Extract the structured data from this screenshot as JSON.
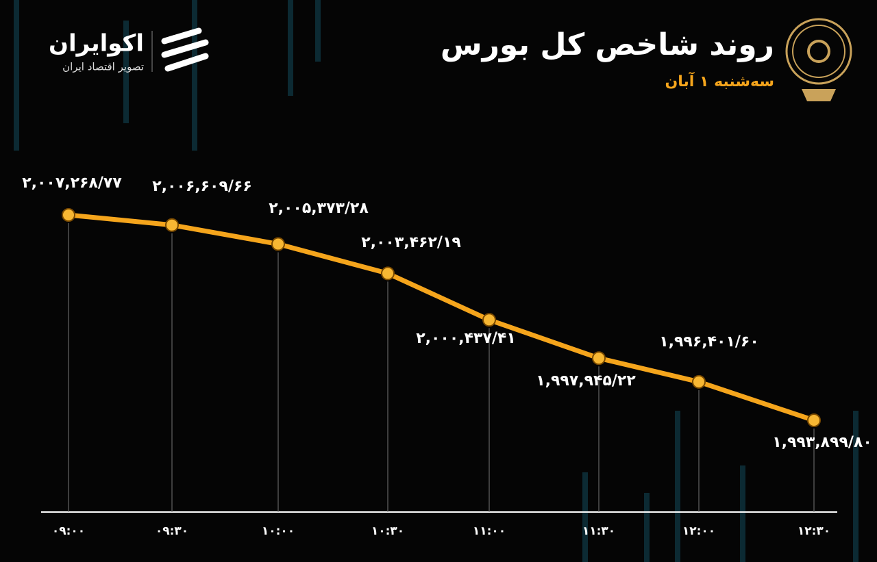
{
  "brand": {
    "name": "اکوایران",
    "tagline": "تصویر اقتصاد ایران"
  },
  "chart_data": {
    "type": "line",
    "title": "روند شاخص کل بورس",
    "subtitle": "سه‌شنبه ۱ آبان",
    "categories": [
      "۰۹:۰۰",
      "۰۹:۳۰",
      "۱۰:۰۰",
      "۱۰:۳۰",
      "۱۱:۰۰",
      "۱۱:۳۰",
      "۱۲:۰۰",
      "۱۲:۳۰"
    ],
    "values": [
      2007268.77,
      2006609.66,
      2005373.28,
      2003462.19,
      2000437.41,
      1997945.22,
      1996401.6,
      1993899.8
    ],
    "value_labels": [
      "۲,۰۰۷,۲۶۸/۷۷",
      "۲,۰۰۶,۶۰۹/۶۶",
      "۲,۰۰۵,۳۷۳/۲۸",
      "۲,۰۰۳,۴۶۲/۱۹",
      "۲,۰۰۰,۴۳۷/۴۱",
      "۱,۹۹۷,۹۴۵/۲۲",
      "۱,۹۹۶,۴۰۱/۶۰",
      "۱,۹۹۳,۸۹۹/۸۰"
    ],
    "color": "#f5a51c"
  }
}
